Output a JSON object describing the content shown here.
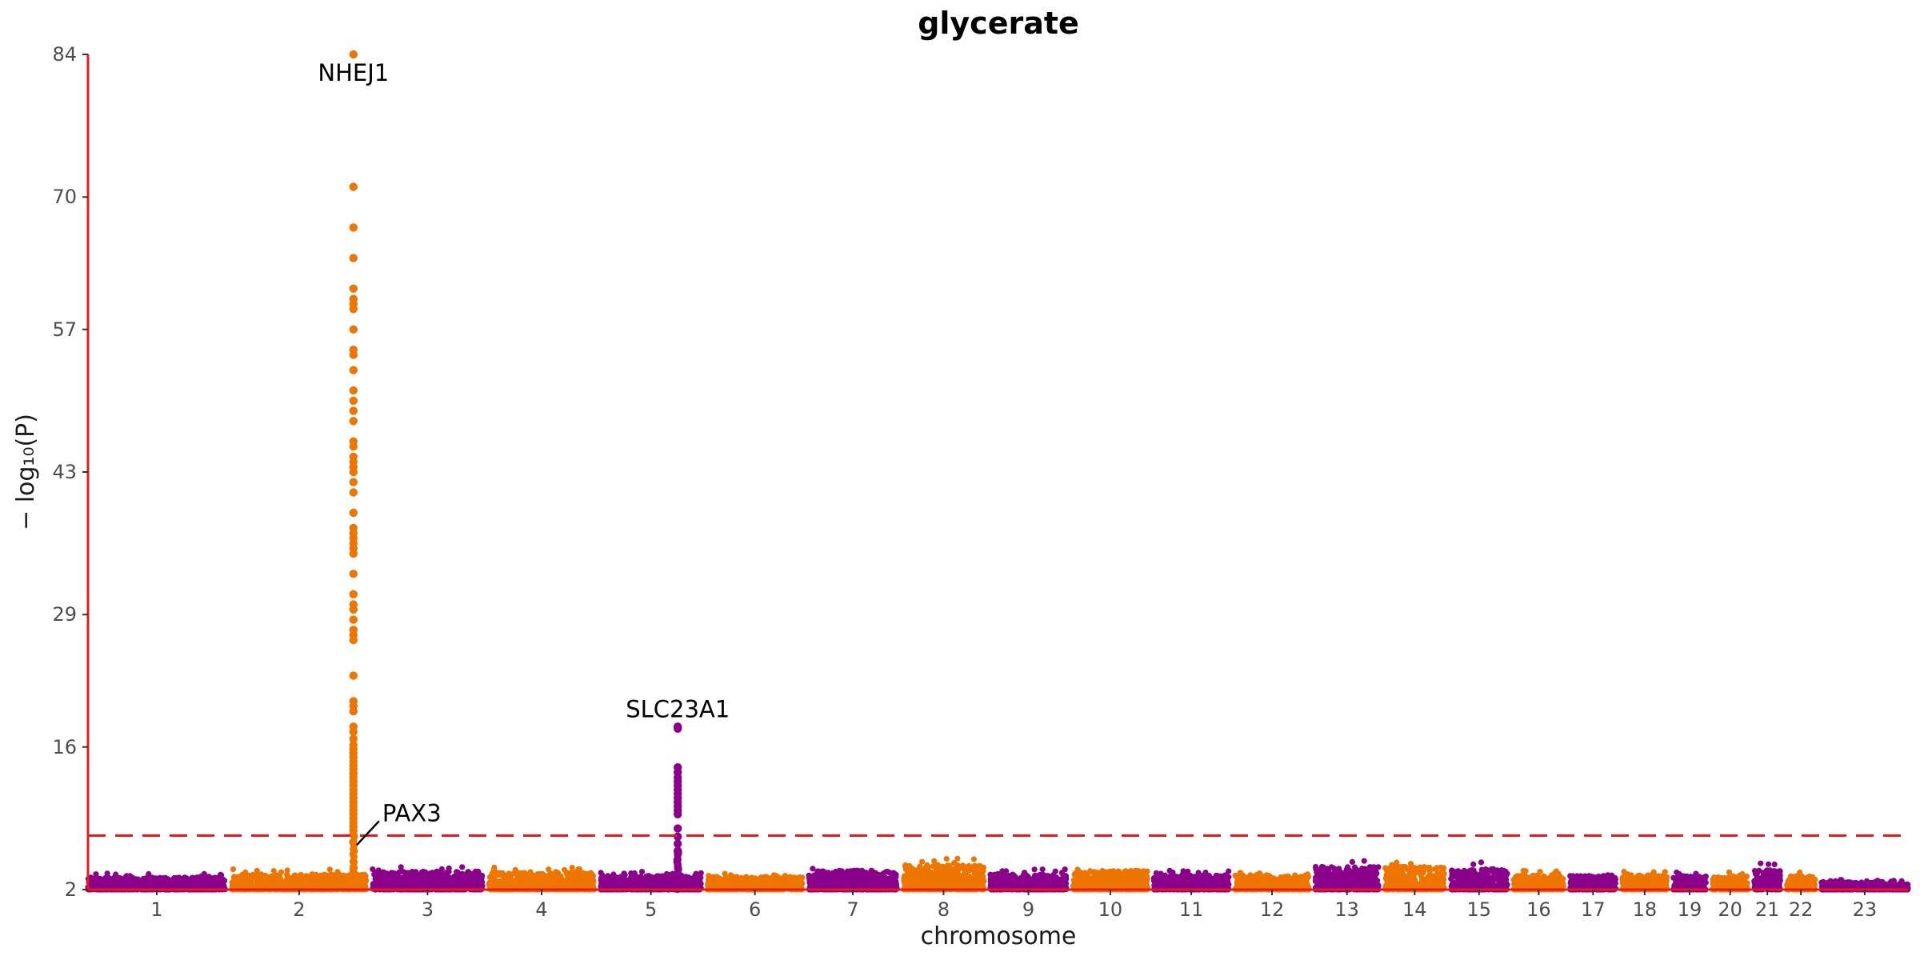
{
  "chart_data": {
    "type": "scatter",
    "title": "glycerate",
    "xlabel": "chromosome",
    "ylabel": "− log₁₀(P)",
    "ylim": [
      2,
      84
    ],
    "yticks": [
      2,
      16,
      29,
      43,
      57,
      70,
      84
    ],
    "significance_threshold": 7.3,
    "threshold_style": "dashed",
    "colors": {
      "odd_chromosome": "#8b008b",
      "even_chromosome": "#ee7600",
      "threshold": "#e8191a",
      "axis": "#e8191a"
    },
    "chromosomes": [
      {
        "label": "1",
        "length": 248
      },
      {
        "label": "2",
        "length": 242
      },
      {
        "label": "3",
        "length": 198
      },
      {
        "label": "4",
        "length": 190
      },
      {
        "label": "5",
        "length": 181
      },
      {
        "label": "6",
        "length": 171
      },
      {
        "label": "7",
        "length": 159
      },
      {
        "label": "8",
        "length": 145
      },
      {
        "label": "9",
        "length": 138
      },
      {
        "label": "10",
        "length": 134
      },
      {
        "label": "11",
        "length": 135
      },
      {
        "label": "12",
        "length": 133
      },
      {
        "label": "13",
        "length": 114
      },
      {
        "label": "14",
        "length": 107
      },
      {
        "label": "15",
        "length": 102
      },
      {
        "label": "16",
        "length": 90
      },
      {
        "label": "17",
        "length": 83
      },
      {
        "label": "18",
        "length": 80
      },
      {
        "label": "19",
        "length": 59
      },
      {
        "label": "20",
        "length": 64
      },
      {
        "label": "21",
        "length": 47
      },
      {
        "label": "22",
        "length": 51
      },
      {
        "label": "23",
        "length": 156
      }
    ],
    "background_max_neglog10p": [
      3.6,
      4.0,
      4.4,
      4.2,
      3.8,
      3.7,
      4.5,
      5.2,
      4.0,
      4.5,
      3.9,
      3.9,
      5.0,
      5.0,
      4.7,
      3.9,
      3.8,
      3.9,
      3.8,
      3.8,
      4.6,
      3.8,
      3.0
    ],
    "peaks": [
      {
        "gene": "NHEJ1",
        "chromosome": "2",
        "position_mb": 219,
        "top_neglog10p": 84,
        "values": [
          84,
          71,
          67,
          64,
          61,
          60,
          59.5,
          59,
          57,
          55,
          54.5,
          53,
          51,
          50,
          49,
          48,
          46,
          45.5,
          44.5,
          44,
          43.5,
          43,
          42,
          41,
          39,
          37.5,
          37,
          36.5,
          36,
          35.5,
          35,
          33,
          31,
          30,
          29.5,
          28.5,
          27.5,
          27,
          26.5,
          23,
          20.5,
          20,
          19.5,
          18,
          17.5,
          16.8,
          16.2,
          15.8,
          15.4,
          15,
          14.6,
          14.2,
          13.8,
          13.4,
          13,
          12.6,
          12.2,
          11.8,
          11.4,
          11,
          10.6,
          10.2,
          9.8,
          9.4,
          9,
          8.6,
          8.2,
          7.8,
          7.4
        ]
      },
      {
        "gene": "PAX3",
        "chromosome": "2",
        "position_mb": 222,
        "top_neglog10p": 7.0,
        "annotation": "leader"
      },
      {
        "gene": "SLC23A1",
        "chromosome": "5",
        "position_mb": 139,
        "top_neglog10p": 18,
        "values": [
          18,
          17.8,
          14,
          13.5,
          13,
          12.6,
          12.2,
          11.8,
          11.4,
          11,
          10.6,
          10.2,
          9.8,
          9.4,
          8,
          7.2,
          6.5,
          5.8
        ]
      }
    ],
    "legend": "none",
    "grid": false
  }
}
